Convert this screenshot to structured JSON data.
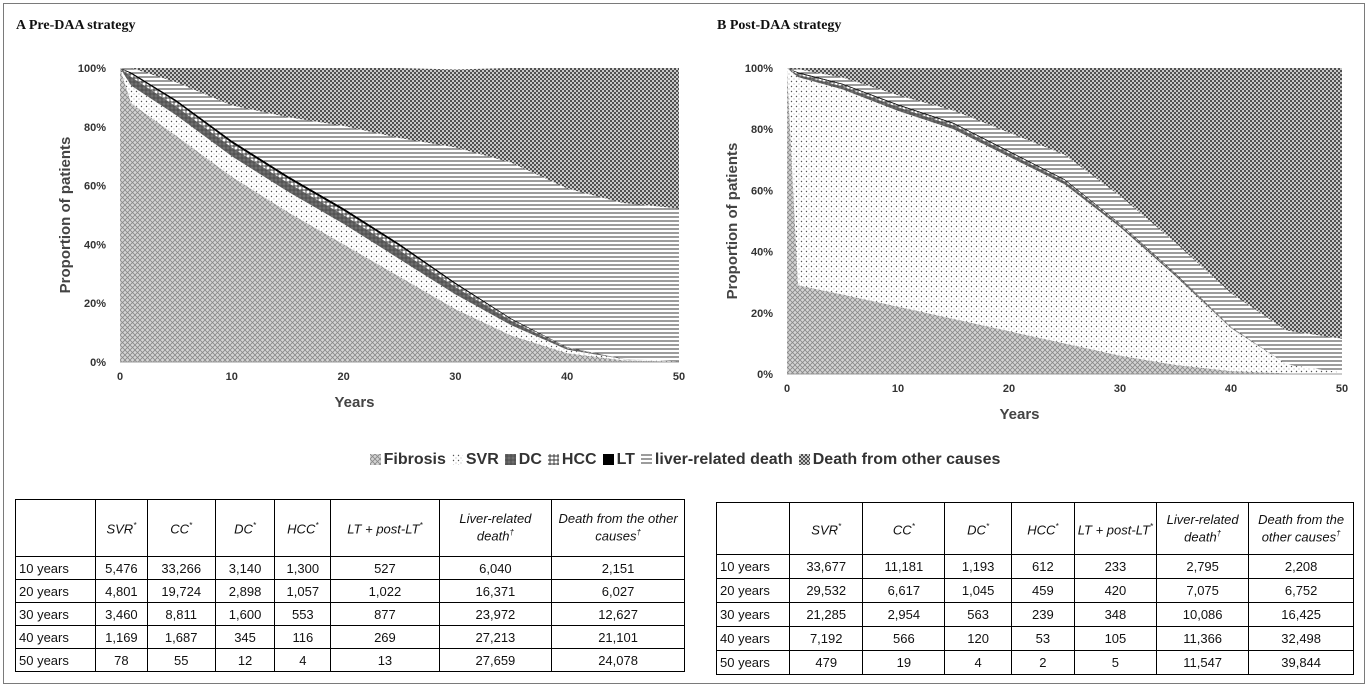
{
  "panels": {
    "a_title": "A Pre-DAA strategy",
    "b_title": "B Post-DAA strategy"
  },
  "legend": {
    "items": [
      {
        "label": "Fibrosis",
        "pattern": "xhatch"
      },
      {
        "label": "SVR",
        "pattern": "dots"
      },
      {
        "label": "DC",
        "pattern": "darkgrid"
      },
      {
        "label": "HCC",
        "pattern": "grid"
      },
      {
        "label": "LT",
        "pattern": "black"
      },
      {
        "label": "liver-related death",
        "pattern": "hlines"
      },
      {
        "label": "Death from other causes",
        "pattern": "checker"
      }
    ]
  },
  "chart_data": [
    {
      "type": "area",
      "stacked": true,
      "title": "A Pre-DAA strategy",
      "xlabel": "Years",
      "ylabel": "Proportion of patients",
      "xlim": [
        0,
        50
      ],
      "ylim": [
        0,
        100
      ],
      "x_ticks": [
        "0",
        "10",
        "20",
        "30",
        "40",
        "50"
      ],
      "y_ticks": [
        "0%",
        "20%",
        "40%",
        "60%",
        "80%",
        "100%"
      ],
      "x": [
        0,
        1,
        5,
        10,
        15,
        20,
        25,
        30,
        35,
        40,
        45,
        50
      ],
      "series": [
        {
          "name": "Fibrosis",
          "pattern": "xhatch",
          "values": [
            100,
            88,
            77,
            63,
            51,
            40,
            29,
            18,
            9,
            3,
            0.6,
            0.1
          ]
        },
        {
          "name": "SVR",
          "pattern": "dots",
          "values": [
            0,
            6,
            7,
            7,
            7,
            7,
            6,
            5,
            3.5,
            1.2,
            0.4,
            0.1
          ]
        },
        {
          "name": "DC",
          "pattern": "darkgrid",
          "values": [
            0,
            3,
            3,
            3,
            3,
            3,
            3,
            2.5,
            1.5,
            0.5,
            0.1,
            0
          ]
        },
        {
          "name": "HCC",
          "pattern": "grid",
          "values": [
            0,
            1,
            1.5,
            1.5,
            1.5,
            1.5,
            1.5,
            1,
            0.5,
            0.2,
            0,
            0
          ]
        },
        {
          "name": "LT",
          "pattern": "black",
          "values": [
            0,
            0.5,
            0.7,
            0.8,
            0.8,
            0.8,
            0.7,
            0.5,
            0.3,
            0.1,
            0,
            0
          ]
        },
        {
          "name": "liver-related death",
          "pattern": "hlines",
          "values": [
            0,
            1.5,
            6,
            12,
            20,
            28,
            36,
            46,
            53,
            54,
            53,
            52
          ]
        },
        {
          "name": "Death from other causes",
          "pattern": "checker",
          "values": [
            0,
            0,
            4.8,
            12.7,
            16.7,
            19.7,
            23.8,
            26.5,
            32.2,
            41,
            45.9,
            47.8
          ]
        }
      ]
    },
    {
      "type": "area",
      "stacked": true,
      "title": "B Post-DAA strategy",
      "xlabel": "Years",
      "ylabel": "Proportion of patients",
      "xlim": [
        0,
        50
      ],
      "ylim": [
        0,
        100
      ],
      "x_ticks": [
        "0",
        "10",
        "20",
        "30",
        "40",
        "50"
      ],
      "y_ticks": [
        "0%",
        "20%",
        "40%",
        "60%",
        "80%",
        "100%"
      ],
      "x": [
        0,
        1,
        5,
        10,
        15,
        20,
        25,
        30,
        35,
        40,
        45,
        50
      ],
      "series": [
        {
          "name": "Fibrosis",
          "pattern": "xhatch",
          "values": [
            100,
            29,
            26,
            22,
            18,
            14,
            10,
            6,
            3,
            1,
            0.2,
            0
          ]
        },
        {
          "name": "SVR",
          "pattern": "dots",
          "values": [
            0,
            68,
            67,
            64,
            62,
            57,
            52,
            42,
            29,
            14,
            3,
            0.5
          ]
        },
        {
          "name": "DC",
          "pattern": "darkgrid",
          "values": [
            0,
            0.8,
            1,
            1.2,
            1.2,
            1.1,
            1,
            0.7,
            0.5,
            0.2,
            0,
            0
          ]
        },
        {
          "name": "HCC",
          "pattern": "grid",
          "values": [
            0,
            0.5,
            0.6,
            0.6,
            0.6,
            0.5,
            0.4,
            0.3,
            0.2,
            0.1,
            0,
            0
          ]
        },
        {
          "name": "LT",
          "pattern": "black",
          "values": [
            0,
            0.3,
            0.3,
            0.3,
            0.3,
            0.3,
            0.3,
            0.2,
            0.2,
            0.1,
            0,
            0
          ]
        },
        {
          "name": "liver-related death",
          "pattern": "hlines",
          "values": [
            0,
            1,
            2,
            3,
            4,
            6,
            8,
            9,
            10,
            11,
            11,
            11
          ]
        },
        {
          "name": "Death from other causes",
          "pattern": "checker",
          "values": [
            0,
            0.4,
            3.1,
            8.9,
            13.9,
            21.1,
            28.3,
            41.8,
            57.1,
            73.6,
            85.8,
            88.5
          ]
        }
      ]
    }
  ],
  "tables": [
    {
      "headers": [
        {
          "text": "",
          "sup": ""
        },
        {
          "text": "SVR",
          "sup": "*"
        },
        {
          "text": "CC",
          "sup": "*"
        },
        {
          "text": "DC",
          "sup": "*"
        },
        {
          "text": "HCC",
          "sup": "*"
        },
        {
          "text": "LT + post-LT",
          "sup": "*"
        },
        {
          "text": "Liver-related death",
          "sup": "†"
        },
        {
          "text": "Death from the other causes",
          "sup": "†"
        }
      ],
      "rows": [
        [
          "10 years",
          "5,476",
          "33,266",
          "3,140",
          "1,300",
          "527",
          "6,040",
          "2,151"
        ],
        [
          "20 years",
          "4,801",
          "19,724",
          "2,898",
          "1,057",
          "1,022",
          "16,371",
          "6,027"
        ],
        [
          "30 years",
          "3,460",
          "8,811",
          "1,600",
          "553",
          "877",
          "23,972",
          "12,627"
        ],
        [
          "40 years",
          "1,169",
          "1,687",
          "345",
          "116",
          "269",
          "27,213",
          "21,101"
        ],
        [
          "50 years",
          "78",
          "55",
          "12",
          "4",
          "13",
          "27,659",
          "24,078"
        ]
      ]
    },
    {
      "headers": [
        {
          "text": "",
          "sup": ""
        },
        {
          "text": "SVR",
          "sup": "*"
        },
        {
          "text": "CC",
          "sup": "*"
        },
        {
          "text": "DC",
          "sup": "*"
        },
        {
          "text": "HCC",
          "sup": "*"
        },
        {
          "text": "LT + post-LT",
          "sup": "*"
        },
        {
          "text": "Liver-related death",
          "sup": "†"
        },
        {
          "text": "Death from the other causes",
          "sup": "†"
        }
      ],
      "rows": [
        [
          "10 years",
          "33,677",
          "11,181",
          "1,193",
          "612",
          "233",
          "2,795",
          "2,208"
        ],
        [
          "20 years",
          "29,532",
          "6,617",
          "1,045",
          "459",
          "420",
          "7,075",
          "6,752"
        ],
        [
          "30 years",
          "21,285",
          "2,954",
          "563",
          "239",
          "348",
          "10,086",
          "16,425"
        ],
        [
          "40 years",
          "7,192",
          "566",
          "120",
          "53",
          "105",
          "11,366",
          "32,498"
        ],
        [
          "50 years",
          "479",
          "19",
          "4",
          "2",
          "5",
          "11,547",
          "39,844"
        ]
      ]
    }
  ]
}
